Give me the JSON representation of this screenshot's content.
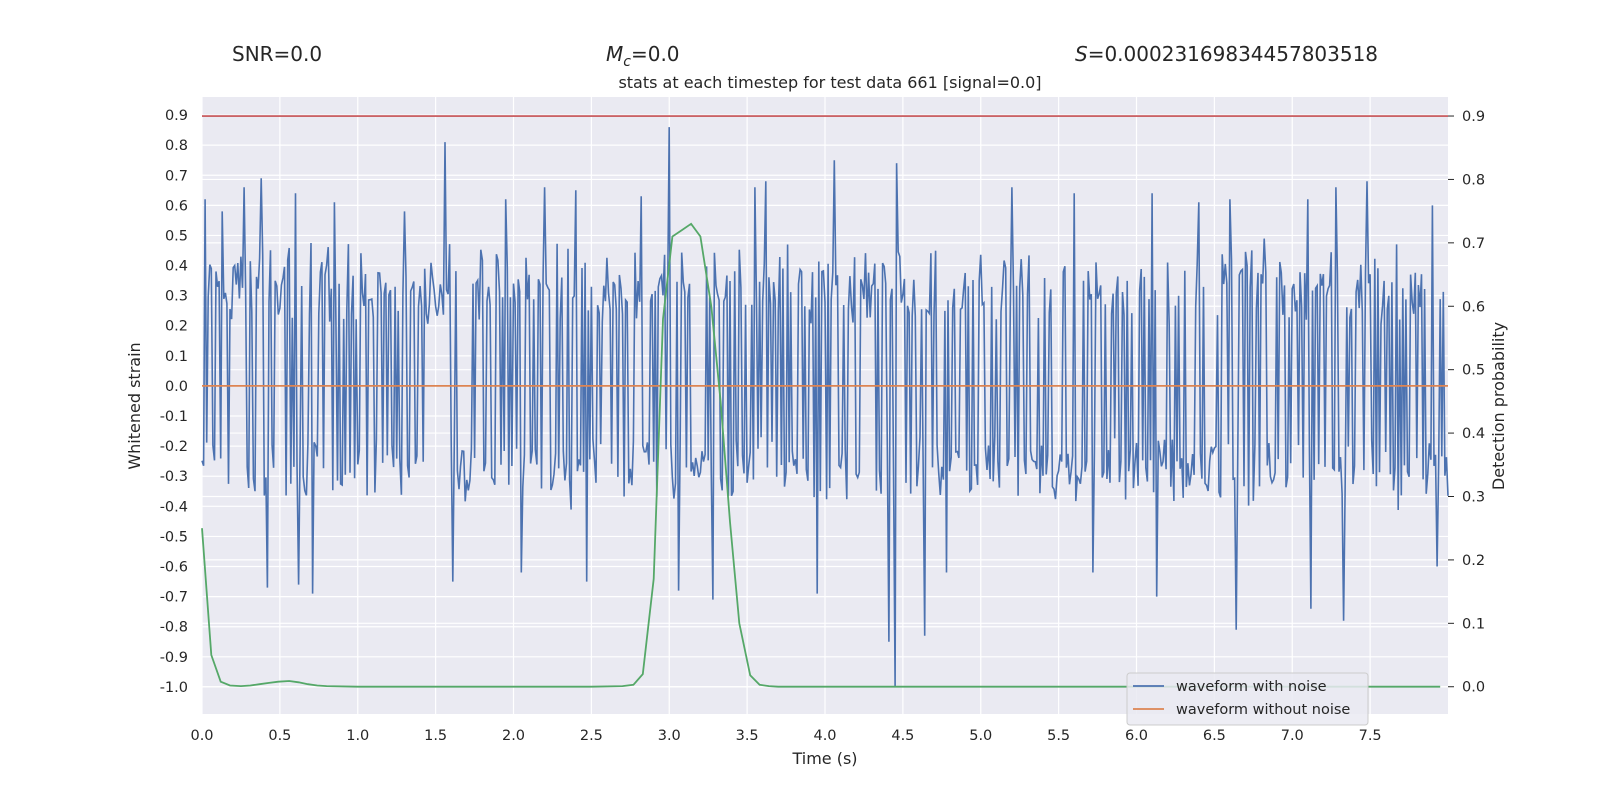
{
  "header": {
    "snr_label": "SNR=0.0",
    "mc_symbol": "M",
    "mc_subscript": "c",
    "mc_value": "=0.0",
    "s_symbol": "S",
    "s_value": "=0.00023169834457803518"
  },
  "chart_data": {
    "type": "line",
    "title": "stats at each timestep for test data 661 [signal=0.0]",
    "xlabel": "Time (s)",
    "ylabel_left": "Whitened strain",
    "ylabel_right": "Detection probability",
    "xlim": [
      0.0,
      8.0
    ],
    "ylim_left": [
      -1.09,
      0.96
    ],
    "ylim_right": [
      -0.043,
      0.93
    ],
    "x_ticks": [
      "0.0",
      "0.5",
      "1.0",
      "1.5",
      "2.0",
      "2.5",
      "3.0",
      "3.5",
      "4.0",
      "4.5",
      "5.0",
      "5.5",
      "6.0",
      "6.5",
      "7.0",
      "7.5"
    ],
    "y_left_ticks": [
      "0.9",
      "0.8",
      "0.7",
      "0.6",
      "0.5",
      "0.4",
      "0.3",
      "0.2",
      "0.1",
      "0.0",
      "-0.1",
      "-0.2",
      "-0.3",
      "-0.4",
      "-0.5",
      "-0.6",
      "-0.7",
      "-0.8",
      "-0.9",
      "-1.0"
    ],
    "y_right_ticks": [
      "0.9",
      "0.8",
      "0.7",
      "0.6",
      "0.5",
      "0.4",
      "0.3",
      "0.2",
      "0.1",
      "0.0"
    ],
    "grid": true,
    "legend_placement": "lower-right",
    "legend": [
      {
        "label": "waveform with noise",
        "color": "#4c72b0"
      },
      {
        "label": "waveform without noise",
        "color": "#dd8452"
      }
    ],
    "threshold": {
      "value": 0.9,
      "axis": "right",
      "color": "#c44e52"
    },
    "series": [
      {
        "name": "waveform with noise",
        "axis": "left",
        "color": "#4c72b0",
        "display": "dense noise band",
        "typical_range": [
          -0.42,
          0.5
        ],
        "x_step": 0.01,
        "peaks": [
          {
            "x": 0.02,
            "y": 0.62
          },
          {
            "x": 0.13,
            "y": 0.58
          },
          {
            "x": 0.27,
            "y": 0.66
          },
          {
            "x": 0.38,
            "y": 0.69
          },
          {
            "x": 0.6,
            "y": 0.64
          },
          {
            "x": 0.85,
            "y": 0.61
          },
          {
            "x": 1.3,
            "y": 0.58
          },
          {
            "x": 1.56,
            "y": 0.81
          },
          {
            "x": 1.95,
            "y": 0.62
          },
          {
            "x": 2.2,
            "y": 0.66
          },
          {
            "x": 2.4,
            "y": 0.65
          },
          {
            "x": 2.82,
            "y": 0.63
          },
          {
            "x": 3.0,
            "y": 0.86
          },
          {
            "x": 3.55,
            "y": 0.66
          },
          {
            "x": 3.62,
            "y": 0.68
          },
          {
            "x": 4.06,
            "y": 0.75
          },
          {
            "x": 4.46,
            "y": 0.74
          },
          {
            "x": 5.2,
            "y": 0.66
          },
          {
            "x": 5.6,
            "y": 0.64
          },
          {
            "x": 6.1,
            "y": 0.64
          },
          {
            "x": 6.4,
            "y": 0.61
          },
          {
            "x": 6.6,
            "y": 0.62
          },
          {
            "x": 7.1,
            "y": 0.62
          },
          {
            "x": 7.28,
            "y": 0.66
          },
          {
            "x": 7.48,
            "y": 0.68
          },
          {
            "x": 7.9,
            "y": 0.6
          }
        ],
        "troughs": [
          {
            "x": 0.42,
            "y": -0.67
          },
          {
            "x": 0.62,
            "y": -0.66
          },
          {
            "x": 0.71,
            "y": -0.69
          },
          {
            "x": 1.61,
            "y": -0.65
          },
          {
            "x": 2.05,
            "y": -0.62
          },
          {
            "x": 2.47,
            "y": -0.65
          },
          {
            "x": 3.06,
            "y": -0.68
          },
          {
            "x": 3.28,
            "y": -0.71
          },
          {
            "x": 3.95,
            "y": -0.69
          },
          {
            "x": 4.41,
            "y": -0.85
          },
          {
            "x": 4.45,
            "y": -1.0
          },
          {
            "x": 4.64,
            "y": -0.83
          },
          {
            "x": 4.78,
            "y": -0.62
          },
          {
            "x": 5.72,
            "y": -0.62
          },
          {
            "x": 6.13,
            "y": -0.7
          },
          {
            "x": 6.64,
            "y": -0.81
          },
          {
            "x": 7.12,
            "y": -0.74
          },
          {
            "x": 7.33,
            "y": -0.78
          },
          {
            "x": 7.93,
            "y": -0.6
          }
        ]
      },
      {
        "name": "waveform without noise",
        "axis": "left",
        "color": "#dd8452",
        "x": [
          0.0,
          8.0
        ],
        "y": [
          0.0,
          0.0
        ]
      },
      {
        "axis": "right",
        "color": "#55a868",
        "x": [
          0.0,
          0.06,
          0.12,
          0.18,
          0.25,
          0.31,
          0.37,
          0.43,
          0.49,
          0.56,
          0.62,
          0.68,
          0.74,
          0.8,
          1.0,
          1.5,
          2.0,
          2.5,
          2.7,
          2.77,
          2.83,
          2.9,
          2.96,
          3.02,
          3.08,
          3.14,
          3.2,
          3.27,
          3.33,
          3.39,
          3.45,
          3.52,
          3.58,
          3.64,
          3.7,
          4.0,
          5.0,
          6.0,
          7.0,
          7.95
        ],
        "y": [
          0.25,
          0.05,
          0.008,
          0.002,
          0.001,
          0.002,
          0.004,
          0.006,
          0.008,
          0.009,
          0.007,
          0.004,
          0.002,
          0.001,
          0.0,
          0.0,
          0.0,
          0.0,
          0.001,
          0.003,
          0.02,
          0.17,
          0.58,
          0.71,
          0.72,
          0.73,
          0.71,
          0.6,
          0.45,
          0.26,
          0.1,
          0.018,
          0.003,
          0.001,
          0.0,
          0.0,
          0.0,
          0.0,
          0.0,
          0.0
        ]
      }
    ]
  }
}
